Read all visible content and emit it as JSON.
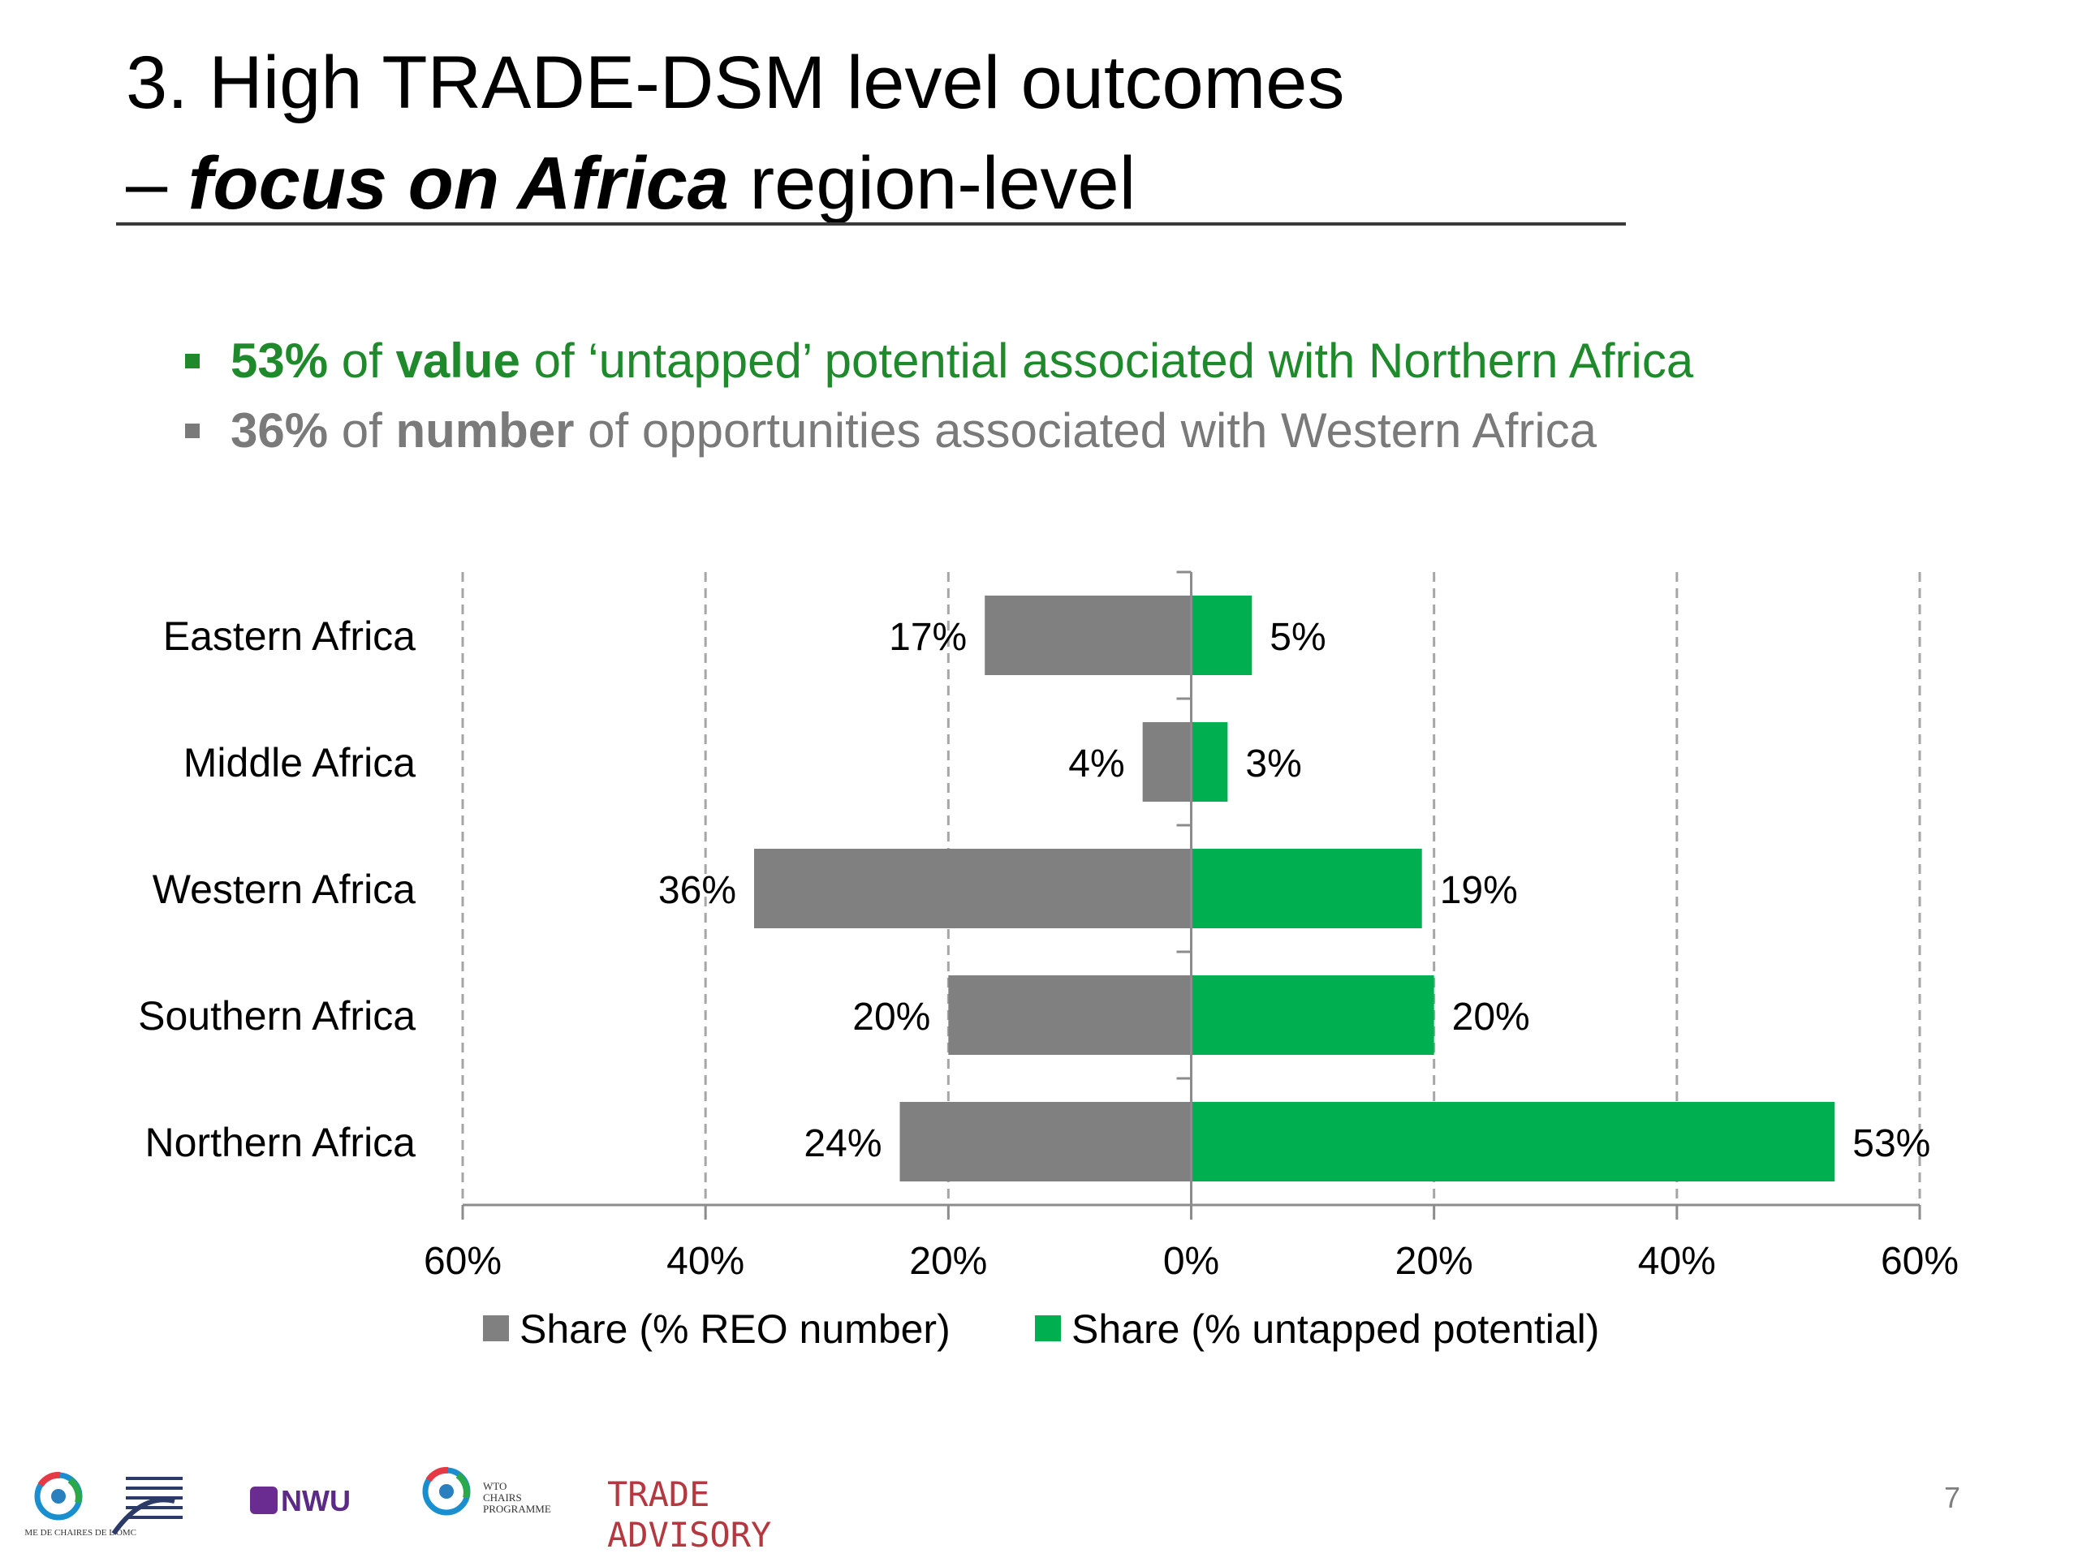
{
  "title": {
    "line1": "3. High TRADE-DSM level outcomes",
    "line2_prefix": "– ",
    "line2_emph": "focus on Africa",
    "line2_suffix": " region-level"
  },
  "bullets": [
    {
      "pct": "53%",
      "of1": " of ",
      "bold": "value",
      "rest": " of ‘untapped’ potential associated with Northern Africa",
      "color": "#1f8a2c"
    },
    {
      "pct": "36%",
      "of1": " of ",
      "bold": "number",
      "rest": " of opportunities associated with Western Africa",
      "color": "#7a7a7a"
    }
  ],
  "chart_data": {
    "type": "bar",
    "orientation": "horizontal",
    "categories": [
      "Eastern Africa",
      "Middle Africa",
      "Western Africa",
      "Southern Africa",
      "Northern Africa"
    ],
    "series": [
      {
        "name": "Share (% REO number)",
        "values": [
          17,
          4,
          36,
          20,
          24
        ],
        "color": "#808080",
        "direction": "left"
      },
      {
        "name": "Share (% untapped potential)",
        "values": [
          5,
          3,
          19,
          20,
          53
        ],
        "color": "#00b050",
        "direction": "right"
      }
    ],
    "data_labels": {
      "left": [
        "17%",
        "4%",
        "36%",
        "20%",
        "24%"
      ],
      "right": [
        "5%",
        "3%",
        "19%",
        "20%",
        "53%"
      ]
    },
    "xticks": [
      "60%",
      "40%",
      "20%",
      "0%",
      "20%",
      "40%",
      "60%"
    ],
    "xlim": [
      -60,
      60
    ],
    "grid": true,
    "legend_position": "bottom"
  },
  "footer": {
    "page_number": "7",
    "logos": {
      "chairs_fr": "PROGRAMME DE CHAIRES DE L'OMC",
      "nwu": "NWU",
      "wto_chairs": [
        "WTO",
        "CHAIRS",
        "PROGRAMME"
      ],
      "trade_advisory": [
        "TRADE",
        "ADVISORY"
      ]
    }
  }
}
